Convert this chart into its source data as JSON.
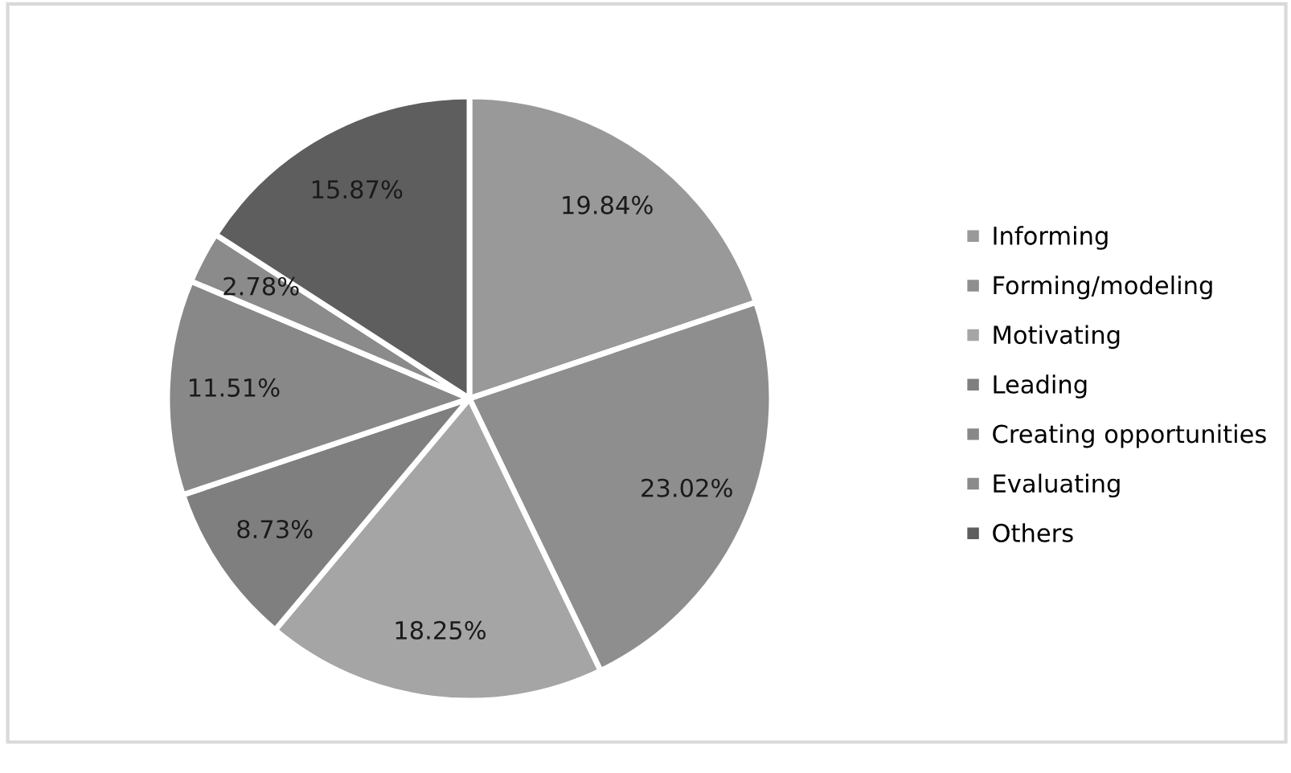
{
  "chart_data": {
    "type": "pie",
    "categories": [
      "Informing",
      "Forming/modeling",
      "Motivating",
      "Leading",
      "Creating opportunities",
      "Evaluating",
      "Others"
    ],
    "values": [
      19.84,
      23.02,
      18.25,
      8.73,
      11.51,
      2.78,
      15.87
    ],
    "value_labels": [
      "19.84%",
      "23.02%",
      "18.25%",
      "8.73%",
      "11.51%",
      "2.78%",
      "15.87%"
    ],
    "colors": [
      "#999999",
      "#8e8e8e",
      "#a5a5a5",
      "#7f7f7f",
      "#888888",
      "#8b8b8b",
      "#5e5e5e"
    ],
    "legend": "right"
  }
}
